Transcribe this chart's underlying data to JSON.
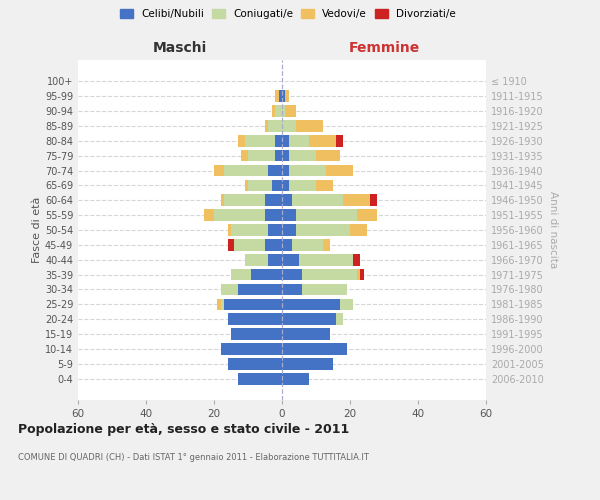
{
  "age_groups": [
    "0-4",
    "5-9",
    "10-14",
    "15-19",
    "20-24",
    "25-29",
    "30-34",
    "35-39",
    "40-44",
    "45-49",
    "50-54",
    "55-59",
    "60-64",
    "65-69",
    "70-74",
    "75-79",
    "80-84",
    "85-89",
    "90-94",
    "95-99",
    "100+"
  ],
  "birth_years": [
    "2006-2010",
    "2001-2005",
    "1996-2000",
    "1991-1995",
    "1986-1990",
    "1981-1985",
    "1976-1980",
    "1971-1975",
    "1966-1970",
    "1961-1965",
    "1956-1960",
    "1951-1955",
    "1946-1950",
    "1941-1945",
    "1936-1940",
    "1931-1935",
    "1926-1930",
    "1921-1925",
    "1916-1920",
    "1911-1915",
    "≤ 1910"
  ],
  "male": {
    "celibi": [
      13,
      16,
      18,
      15,
      16,
      17,
      13,
      9,
      4,
      5,
      4,
      5,
      5,
      3,
      4,
      2,
      2,
      0,
      0,
      1,
      0
    ],
    "coniugati": [
      0,
      0,
      0,
      0,
      0,
      1,
      5,
      6,
      7,
      9,
      11,
      15,
      12,
      7,
      13,
      8,
      9,
      4,
      2,
      0,
      0
    ],
    "vedovi": [
      0,
      0,
      0,
      0,
      0,
      1,
      0,
      0,
      0,
      0,
      1,
      3,
      1,
      1,
      3,
      2,
      2,
      1,
      1,
      1,
      0
    ],
    "divorziati": [
      0,
      0,
      0,
      0,
      0,
      0,
      0,
      0,
      0,
      2,
      0,
      0,
      0,
      0,
      0,
      0,
      0,
      0,
      0,
      0,
      0
    ]
  },
  "female": {
    "nubili": [
      8,
      15,
      19,
      14,
      16,
      17,
      6,
      6,
      5,
      3,
      4,
      4,
      3,
      2,
      2,
      2,
      2,
      0,
      0,
      1,
      0
    ],
    "coniugate": [
      0,
      0,
      0,
      0,
      2,
      4,
      13,
      16,
      16,
      9,
      16,
      18,
      15,
      8,
      11,
      8,
      6,
      4,
      1,
      0,
      0
    ],
    "vedove": [
      0,
      0,
      0,
      0,
      0,
      0,
      0,
      1,
      0,
      2,
      5,
      6,
      8,
      5,
      8,
      7,
      8,
      8,
      3,
      1,
      0
    ],
    "divorziate": [
      0,
      0,
      0,
      0,
      0,
      0,
      0,
      1,
      2,
      0,
      0,
      0,
      2,
      0,
      0,
      0,
      2,
      0,
      0,
      0,
      0
    ]
  },
  "color_celibi": "#4472c4",
  "color_coniugati": "#c5d9a2",
  "color_vedovi": "#f0c060",
  "color_divorziati": "#cc2222",
  "xlim": 60,
  "title": "Popolazione per età, sesso e stato civile - 2011",
  "subtitle": "COMUNE DI QUADRI (CH) - Dati ISTAT 1° gennaio 2011 - Elaborazione TUTTITALIA.IT",
  "ylabel": "Fasce di età",
  "ylabel_right": "Anni di nascita",
  "xlabel_left": "Maschi",
  "xlabel_right": "Femmine",
  "bg_color": "#f0f0f0",
  "plot_bg": "#ffffff"
}
